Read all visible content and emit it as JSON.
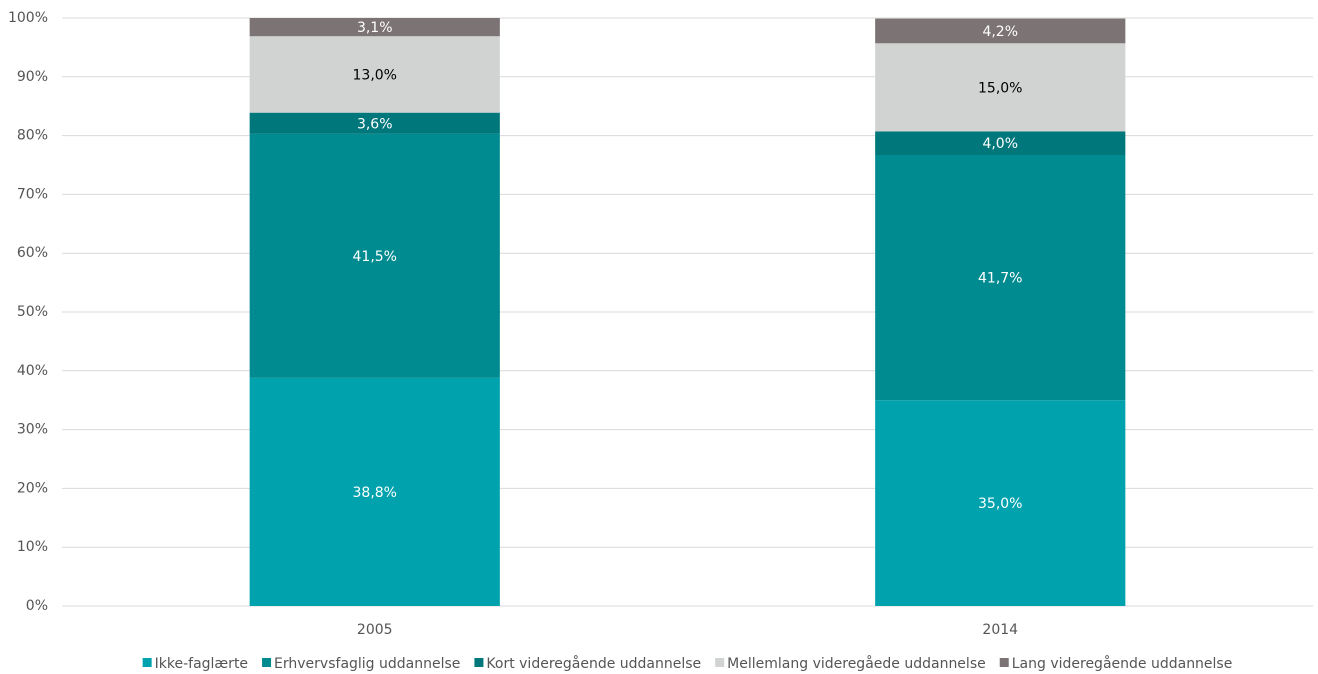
{
  "chart_data": {
    "type": "stacked_bar",
    "categories": [
      "2005",
      "2014"
    ],
    "series": [
      {
        "name": "Ikke-faglærte",
        "color": "#00a3ad",
        "values": [
          38.8,
          35.0
        ],
        "value_labels": [
          "38,8%",
          "35,0%"
        ]
      },
      {
        "name": "Erhvervsfaglig uddannelse",
        "color": "#008b91",
        "values": [
          41.5,
          41.7
        ],
        "value_labels": [
          "41,5%",
          "41,7%"
        ]
      },
      {
        "name": "Kort videregående uddannelse",
        "color": "#00777b",
        "values": [
          3.6,
          4.0
        ],
        "value_labels": [
          "3,6%",
          "4,0%"
        ]
      },
      {
        "name": "Mellemlang videregåede uddannelse",
        "color": "#d1d3d2",
        "values": [
          13.0,
          15.0
        ],
        "value_labels": [
          "13,0%",
          "15,0%"
        ]
      },
      {
        "name": "Lang videregående uddannelse",
        "color": "#7b7374",
        "values": [
          3.1,
          4.2
        ],
        "value_labels": [
          "3,1%",
          "4,2%"
        ]
      }
    ],
    "ylim": [
      0,
      100
    ],
    "yticks": [
      {
        "value": 0,
        "label": "0%"
      },
      {
        "value": 10,
        "label": "10%"
      },
      {
        "value": 20,
        "label": "20%"
      },
      {
        "value": 30,
        "label": "30%"
      },
      {
        "value": 40,
        "label": "40%"
      },
      {
        "value": 50,
        "label": "50%"
      },
      {
        "value": 60,
        "label": "60%"
      },
      {
        "value": 70,
        "label": "70%"
      },
      {
        "value": 80,
        "label": "80%"
      },
      {
        "value": 90,
        "label": "90%"
      },
      {
        "value": 100,
        "label": "100%"
      }
    ],
    "grid": true,
    "legend": "bottom"
  }
}
